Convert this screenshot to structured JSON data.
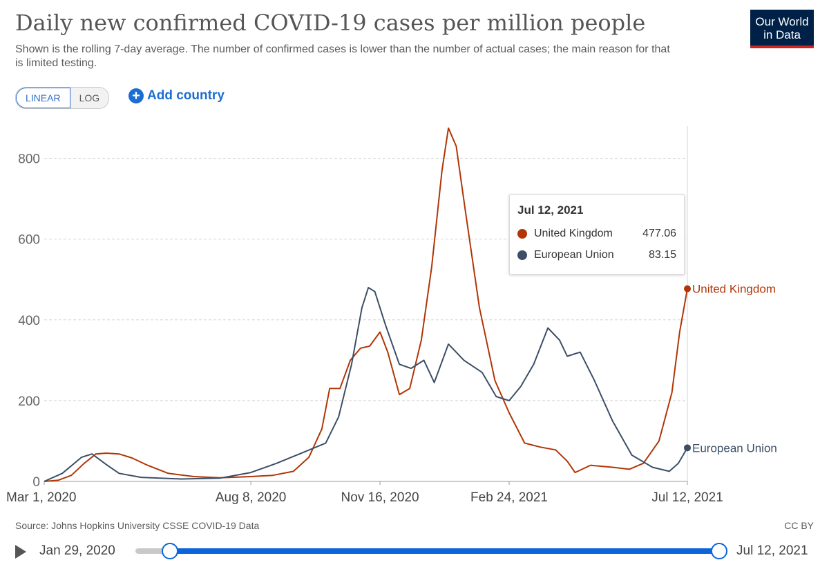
{
  "header": {
    "title": "Daily new confirmed COVID-19 cases per million people",
    "subtitle": "Shown is the rolling 7-day average. The number of confirmed cases is lower than the number of actual cases; the main reason for that is limited testing.",
    "logo_line1": "Our World",
    "logo_line2": "in Data"
  },
  "controls": {
    "linear_label": "LINEAR",
    "log_label": "LOG",
    "active_scale": "linear",
    "add_country_label": "Add country",
    "add_icon": "plus-circle-icon"
  },
  "tooltip": {
    "date": "Jul 12, 2021",
    "rows": [
      {
        "name": "United Kingdom",
        "value": "477.06",
        "color": "#b13507"
      },
      {
        "name": "European Union",
        "value": "83.15",
        "color": "#3c4e66"
      }
    ]
  },
  "footer": {
    "source": "Source: Johns Hopkins University CSSE COVID-19 Data",
    "license": "CC BY"
  },
  "timeline": {
    "play_icon": "play-icon",
    "start_label": "Jan 29, 2020",
    "end_label": "Jul 12, 2021"
  },
  "chart_data": {
    "type": "line",
    "title": "Daily new confirmed COVID-19 cases per million people",
    "xlabel": "",
    "ylabel": "",
    "x_range": [
      "2020-03-01",
      "2021-07-12"
    ],
    "x_ticks": [
      "Mar 1, 2020",
      "Aug 8, 2020",
      "Nov 16, 2020",
      "Feb 24, 2021",
      "Jul 12, 2021"
    ],
    "x_tick_dates": [
      "2020-03-01",
      "2020-08-08",
      "2020-11-16",
      "2021-02-24",
      "2021-07-12"
    ],
    "ylim": [
      0,
      880
    ],
    "y_ticks": [
      0,
      200,
      400,
      600,
      800
    ],
    "grid": "horizontal",
    "legend": "line-end labels",
    "series": [
      {
        "name": "United Kingdom",
        "color": "#b13507",
        "points": [
          [
            "2020-03-01",
            0
          ],
          [
            "2020-03-12",
            3
          ],
          [
            "2020-03-22",
            15
          ],
          [
            "2020-04-01",
            45
          ],
          [
            "2020-04-10",
            68
          ],
          [
            "2020-04-18",
            70
          ],
          [
            "2020-04-28",
            68
          ],
          [
            "2020-05-08",
            58
          ],
          [
            "2020-05-20",
            40
          ],
          [
            "2020-06-05",
            20
          ],
          [
            "2020-06-25",
            12
          ],
          [
            "2020-07-15",
            9
          ],
          [
            "2020-08-08",
            12
          ],
          [
            "2020-08-25",
            15
          ],
          [
            "2020-09-10",
            25
          ],
          [
            "2020-09-22",
            60
          ],
          [
            "2020-10-02",
            130
          ],
          [
            "2020-10-08",
            230
          ],
          [
            "2020-10-16",
            230
          ],
          [
            "2020-10-24",
            300
          ],
          [
            "2020-11-01",
            330
          ],
          [
            "2020-11-08",
            335
          ],
          [
            "2020-11-16",
            370
          ],
          [
            "2020-11-22",
            320
          ],
          [
            "2020-12-01",
            215
          ],
          [
            "2020-12-09",
            230
          ],
          [
            "2020-12-18",
            350
          ],
          [
            "2020-12-26",
            530
          ],
          [
            "2021-01-03",
            770
          ],
          [
            "2021-01-08",
            875
          ],
          [
            "2021-01-14",
            830
          ],
          [
            "2021-01-22",
            650
          ],
          [
            "2021-02-01",
            430
          ],
          [
            "2021-02-13",
            250
          ],
          [
            "2021-02-24",
            170
          ],
          [
            "2021-03-08",
            95
          ],
          [
            "2021-03-20",
            85
          ],
          [
            "2021-04-01",
            78
          ],
          [
            "2021-04-10",
            50
          ],
          [
            "2021-04-16",
            22
          ],
          [
            "2021-04-28",
            40
          ],
          [
            "2021-05-15",
            35
          ],
          [
            "2021-05-28",
            30
          ],
          [
            "2021-06-08",
            45
          ],
          [
            "2021-06-20",
            100
          ],
          [
            "2021-06-30",
            220
          ],
          [
            "2021-07-06",
            370
          ],
          [
            "2021-07-12",
            477.06
          ]
        ]
      },
      {
        "name": "European Union",
        "color": "#3c4e66",
        "points": [
          [
            "2020-03-01",
            0
          ],
          [
            "2020-03-15",
            20
          ],
          [
            "2020-03-30",
            60
          ],
          [
            "2020-04-07",
            68
          ],
          [
            "2020-04-18",
            42
          ],
          [
            "2020-04-28",
            20
          ],
          [
            "2020-05-15",
            10
          ],
          [
            "2020-06-15",
            6
          ],
          [
            "2020-07-15",
            8
          ],
          [
            "2020-08-08",
            22
          ],
          [
            "2020-08-28",
            45
          ],
          [
            "2020-09-20",
            75
          ],
          [
            "2020-10-05",
            95
          ],
          [
            "2020-10-15",
            160
          ],
          [
            "2020-10-25",
            290
          ],
          [
            "2020-11-02",
            430
          ],
          [
            "2020-11-07",
            480
          ],
          [
            "2020-11-12",
            470
          ],
          [
            "2020-11-20",
            390
          ],
          [
            "2020-12-01",
            290
          ],
          [
            "2020-12-10",
            280
          ],
          [
            "2020-12-20",
            300
          ],
          [
            "2020-12-28",
            245
          ],
          [
            "2021-01-08",
            340
          ],
          [
            "2021-01-20",
            300
          ],
          [
            "2021-02-03",
            270
          ],
          [
            "2021-02-14",
            210
          ],
          [
            "2021-02-24",
            200
          ],
          [
            "2021-03-05",
            235
          ],
          [
            "2021-03-15",
            290
          ],
          [
            "2021-03-26",
            380
          ],
          [
            "2021-04-04",
            350
          ],
          [
            "2021-04-10",
            310
          ],
          [
            "2021-04-20",
            320
          ],
          [
            "2021-05-01",
            250
          ],
          [
            "2021-05-15",
            150
          ],
          [
            "2021-05-30",
            65
          ],
          [
            "2021-06-15",
            35
          ],
          [
            "2021-06-28",
            25
          ],
          [
            "2021-07-05",
            45
          ],
          [
            "2021-07-12",
            83.15
          ]
        ]
      }
    ]
  }
}
